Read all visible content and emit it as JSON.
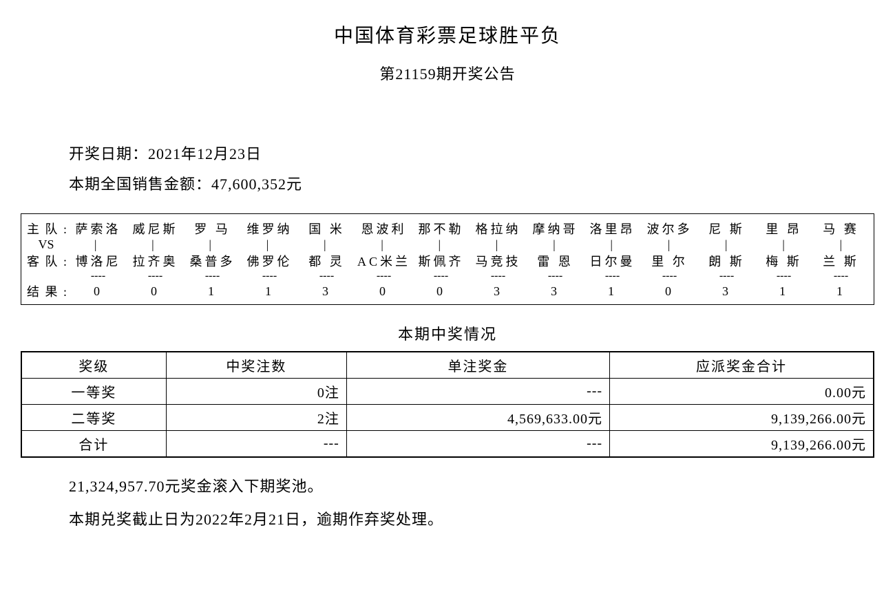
{
  "header": {
    "title": "中国体育彩票足球胜平负",
    "subtitle": "第21159期开奖公告"
  },
  "info": {
    "draw_date_label": "开奖日期：",
    "draw_date": "2021年12月23日",
    "sales_label": "本期全国销售金额：",
    "sales_amount": "47,600,352元"
  },
  "match_table": {
    "labels": {
      "home": "主队:",
      "vs": "VS",
      "away": "客队:",
      "result": "结果:"
    },
    "home_teams": [
      "萨索洛",
      "威尼斯",
      "罗 马",
      "维罗纳",
      "国 米",
      "恩波利",
      "那不勒",
      "格拉纳",
      "摩纳哥",
      "洛里昂",
      "波尔多",
      "尼 斯",
      "里 昂",
      "马 赛"
    ],
    "vs_marks": [
      "|",
      "|",
      "|",
      "|",
      "|",
      "|",
      "|",
      "|",
      "|",
      "|",
      "|",
      "|",
      "|",
      "|"
    ],
    "away_teams": [
      "博洛尼",
      "拉齐奥",
      "桑普多",
      "佛罗伦",
      "都 灵",
      "AC米兰",
      "斯佩齐",
      "马竞技",
      "雷 恩",
      "日尔曼",
      "里 尔",
      "朗 斯",
      "梅 斯",
      "兰 斯"
    ],
    "dashes": [
      "----",
      "----",
      "----",
      "----",
      "----",
      "----",
      "----",
      "----",
      "----",
      "----",
      "----",
      "----",
      "----",
      "----"
    ],
    "results": [
      "0",
      "0",
      "1",
      "1",
      "3",
      "0",
      "0",
      "3",
      "3",
      "1",
      "0",
      "3",
      "1",
      "1"
    ]
  },
  "prize_section_title": "本期中奖情况",
  "prize_table": {
    "columns": [
      "奖级",
      "中奖注数",
      "单注奖金",
      "应派奖金合计"
    ],
    "rows": [
      {
        "level": "一等奖",
        "count": "0注",
        "per": "---",
        "total": "0.00元"
      },
      {
        "level": "二等奖",
        "count": "2注",
        "per": "4,569,633.00元",
        "total": "9,139,266.00元"
      },
      {
        "level": "合计",
        "count": "---",
        "per": "---",
        "total": "9,139,266.00元"
      }
    ]
  },
  "footer": {
    "rollover": "21,324,957.70元奖金滚入下期奖池。",
    "deadline": "本期兑奖截止日为2022年2月21日，逾期作弃奖处理。"
  }
}
